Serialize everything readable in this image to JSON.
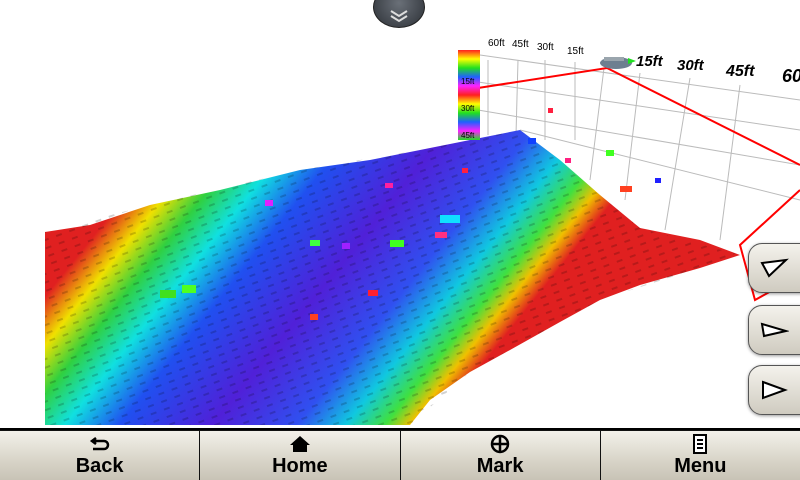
{
  "view": "3D sonar",
  "depth_scale": {
    "labels": [
      "15ft",
      "30ft",
      "45ft"
    ]
  },
  "range_axis_back": {
    "labels": [
      "60ft",
      "45ft",
      "30ft",
      "15ft"
    ]
  },
  "range_axis_front": {
    "labels": [
      "15ft",
      "30ft",
      "45ft",
      "60"
    ]
  },
  "colors": {
    "boundary": "#ff0000",
    "grid": "#bbbbbb",
    "button_face": "#e6e3da"
  },
  "top_button": {
    "icon": "double-chevron-down-icon"
  },
  "side_buttons": [
    {
      "icon": "view-angle-high-icon"
    },
    {
      "icon": "view-angle-mid-icon"
    },
    {
      "icon": "view-angle-low-icon"
    }
  ],
  "nav": [
    {
      "label": "Back",
      "icon": "back-arrow-icon"
    },
    {
      "label": "Home",
      "icon": "home-icon"
    },
    {
      "label": "Mark",
      "icon": "crosshair-icon"
    },
    {
      "label": "Menu",
      "icon": "menu-list-icon"
    }
  ]
}
